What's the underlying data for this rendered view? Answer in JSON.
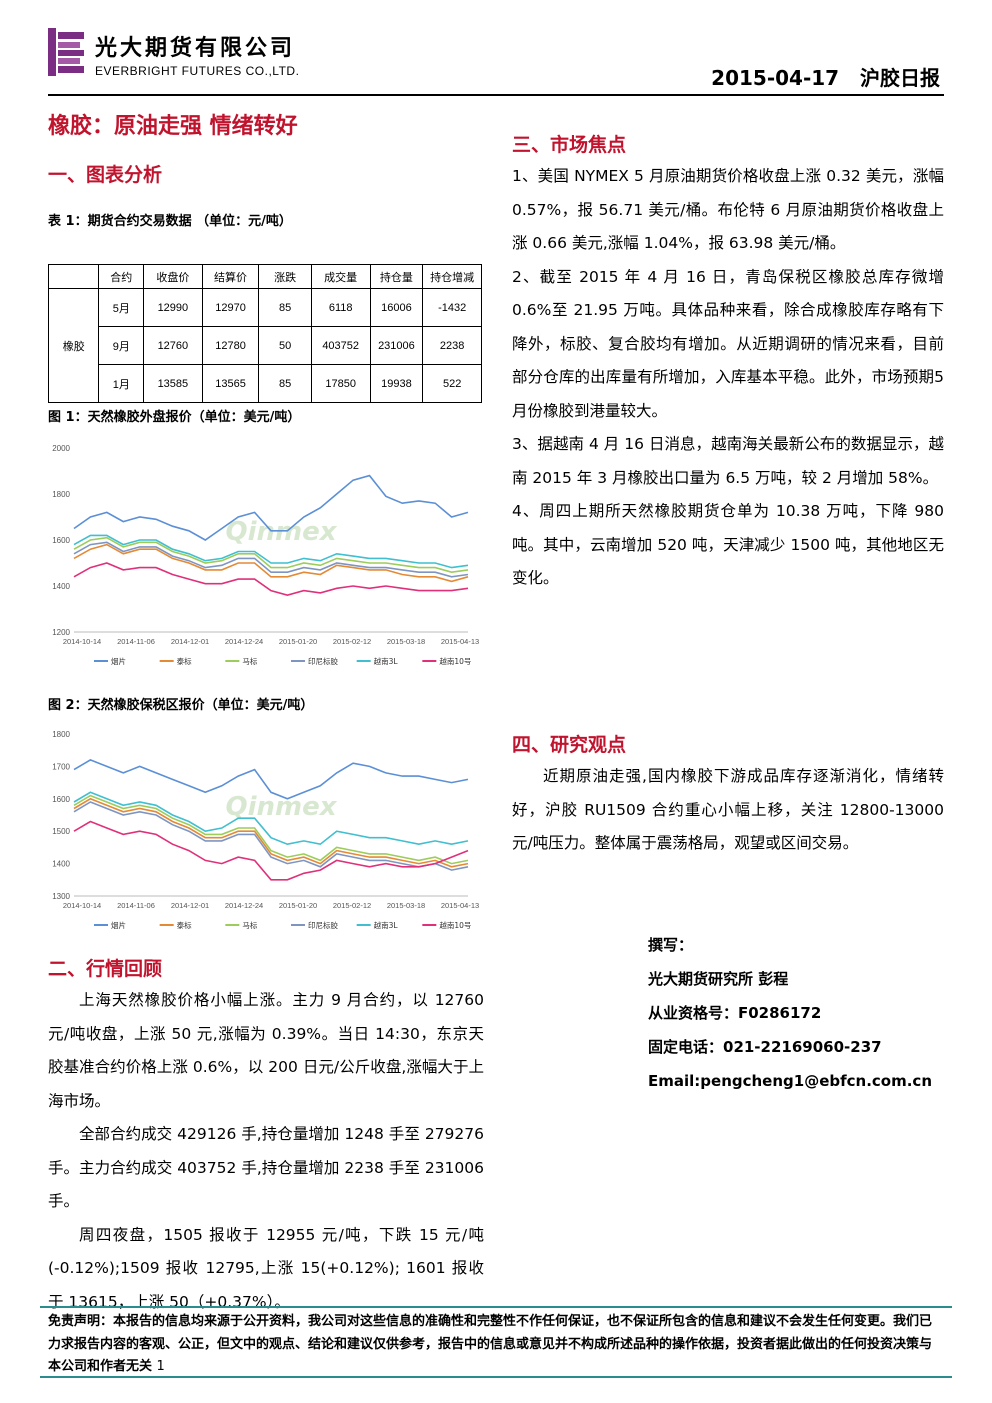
{
  "header": {
    "company_cn": "光大期货有限公司",
    "company_en": "EVERBRIGHT FUTURES CO.,LTD.",
    "date": "2015-04-17",
    "report_name": "沪胶日报"
  },
  "title": "橡胶：原油走强 情绪转好",
  "section1": {
    "heading": "一、图表分析",
    "table_caption": "表 1：期货合约交易数据 （单位：元/吨）",
    "table": {
      "headers": [
        "合约",
        "收盘价",
        "结算价",
        "涨跌",
        "成交量",
        "持仓量",
        "持仓增减"
      ],
      "row_label": "橡胶",
      "rows": [
        [
          "5月",
          "12990",
          "12970",
          "85",
          "6118",
          "16006",
          "-1432"
        ],
        [
          "9月",
          "12760",
          "12780",
          "50",
          "403752",
          "231006",
          "2238"
        ],
        [
          "1月",
          "13585",
          "13565",
          "85",
          "17850",
          "19938",
          "522"
        ]
      ]
    },
    "fig1_caption": "图 1：天然橡胶外盘报价（单位：美元/吨）",
    "fig2_caption": "图 2：天然橡胶保税区报价（单位：美元/吨）"
  },
  "chart_data": [
    {
      "type": "line",
      "title": "",
      "ylim": [
        1200,
        2000
      ],
      "yticks": [
        "2000",
        "1800",
        "1600",
        "1400",
        "1200"
      ],
      "xticks": [
        "2014-10-14",
        "2014-11-06",
        "2014-12-01",
        "2014-12-24",
        "2015-01-20",
        "2015-02-12",
        "2015-03-18",
        "2015-04-13"
      ],
      "watermark": "Qinmex",
      "series": [
        {
          "name": "烟片",
          "color": "#5b8fd6",
          "values": [
            1650,
            1700,
            1720,
            1680,
            1700,
            1690,
            1660,
            1640,
            1600,
            1650,
            1700,
            1720,
            1640,
            1640,
            1700,
            1740,
            1800,
            1860,
            1880,
            1790,
            1760,
            1770,
            1760,
            1700,
            1720
          ]
        },
        {
          "name": "泰标",
          "color": "#e48a35",
          "values": [
            1520,
            1560,
            1580,
            1540,
            1560,
            1560,
            1520,
            1500,
            1470,
            1470,
            1500,
            1500,
            1440,
            1440,
            1460,
            1450,
            1490,
            1480,
            1470,
            1470,
            1450,
            1440,
            1440,
            1420,
            1440
          ]
        },
        {
          "name": "马标",
          "color": "#9ccc5a",
          "values": [
            1560,
            1600,
            1610,
            1570,
            1590,
            1590,
            1550,
            1530,
            1500,
            1510,
            1540,
            1540,
            1480,
            1480,
            1500,
            1490,
            1520,
            1510,
            1500,
            1500,
            1490,
            1480,
            1480,
            1460,
            1470
          ]
        },
        {
          "name": "印尼标胶",
          "color": "#7e95c2",
          "values": [
            1540,
            1580,
            1590,
            1550,
            1570,
            1570,
            1530,
            1510,
            1480,
            1490,
            1520,
            1520,
            1460,
            1460,
            1480,
            1470,
            1500,
            1490,
            1480,
            1480,
            1470,
            1460,
            1460,
            1440,
            1450
          ]
        },
        {
          "name": "越南3L",
          "color": "#3fbfcf",
          "values": [
            1580,
            1620,
            1620,
            1580,
            1600,
            1600,
            1560,
            1540,
            1510,
            1520,
            1550,
            1550,
            1500,
            1500,
            1520,
            1510,
            1540,
            1530,
            1520,
            1520,
            1510,
            1500,
            1500,
            1480,
            1490
          ]
        },
        {
          "name": "越南10号",
          "color": "#e0307a",
          "values": [
            1440,
            1480,
            1500,
            1470,
            1480,
            1480,
            1450,
            1430,
            1410,
            1410,
            1430,
            1430,
            1380,
            1360,
            1380,
            1370,
            1390,
            1400,
            1390,
            1400,
            1390,
            1380,
            1380,
            1380,
            1390
          ]
        }
      ]
    },
    {
      "type": "line",
      "title": "",
      "ylim": [
        1300,
        1800
      ],
      "yticks": [
        "1800",
        "1700",
        "1600",
        "1500",
        "1400",
        "1300"
      ],
      "xticks": [
        "2014-10-14",
        "2014-11-06",
        "2014-12-01",
        "2014-12-24",
        "2015-01-20",
        "2015-02-12",
        "2015-03-18",
        "2015-04-13"
      ],
      "watermark": "Qinmex",
      "series": [
        {
          "name": "烟片",
          "color": "#5b8fd6",
          "values": [
            1690,
            1720,
            1700,
            1680,
            1700,
            1680,
            1660,
            1640,
            1620,
            1640,
            1670,
            1690,
            1620,
            1600,
            1620,
            1640,
            1680,
            1710,
            1700,
            1680,
            1670,
            1670,
            1660,
            1650,
            1660
          ]
        },
        {
          "name": "泰标",
          "color": "#e48a35",
          "values": [
            1570,
            1600,
            1580,
            1560,
            1570,
            1560,
            1530,
            1510,
            1480,
            1480,
            1500,
            1500,
            1430,
            1410,
            1420,
            1400,
            1440,
            1430,
            1420,
            1420,
            1410,
            1400,
            1410,
            1390,
            1400
          ]
        },
        {
          "name": "马标",
          "color": "#9ccc5a",
          "values": [
            1580,
            1610,
            1590,
            1570,
            1580,
            1570,
            1540,
            1520,
            1490,
            1490,
            1510,
            1510,
            1440,
            1420,
            1430,
            1410,
            1450,
            1440,
            1430,
            1430,
            1420,
            1410,
            1420,
            1400,
            1410
          ]
        },
        {
          "name": "印尼标胶",
          "color": "#7e95c2",
          "values": [
            1560,
            1590,
            1570,
            1550,
            1560,
            1550,
            1520,
            1500,
            1470,
            1470,
            1490,
            1490,
            1420,
            1400,
            1410,
            1390,
            1430,
            1420,
            1410,
            1410,
            1400,
            1390,
            1400,
            1380,
            1390
          ]
        },
        {
          "name": "越南3L",
          "color": "#3fbfcf",
          "values": [
            1590,
            1620,
            1600,
            1580,
            1590,
            1580,
            1550,
            1530,
            1500,
            1510,
            1540,
            1540,
            1480,
            1460,
            1470,
            1460,
            1500,
            1490,
            1480,
            1480,
            1470,
            1460,
            1470,
            1460,
            1470
          ]
        },
        {
          "name": "越南10号",
          "color": "#e0307a",
          "values": [
            1500,
            1530,
            1510,
            1490,
            1500,
            1490,
            1460,
            1440,
            1410,
            1400,
            1420,
            1410,
            1350,
            1350,
            1370,
            1380,
            1410,
            1400,
            1390,
            1400,
            1390,
            1390,
            1400,
            1420,
            1440
          ]
        }
      ]
    }
  ],
  "section2": {
    "heading": "二、行情回顾",
    "paragraphs": [
      "上海天然橡胶价格小幅上涨。主力 9 月合约，以 12760 元/吨收盘，上涨 50 元,涨幅为 0.39%。当日 14:30，东京天胶基准合约价格上涨 0.6%，以 200 日元/公斤收盘,涨幅大于上海市场。",
      "全部合约成交 429126 手,持仓量增加 1248 手至 279276 手。主力合约成交 403752 手,持仓量增加 2238 手至 231006 手。",
      "周四夜盘，1505 报收于 12955 元/吨，下跌 15 元/吨(-0.12%);1509 报收 12795,上涨 15(+0.12%); 1601 报收于 13615，上涨 50（+0.37%）。"
    ]
  },
  "section3": {
    "heading": "三、市场焦点",
    "paragraphs": [
      "1、美国 NYMEX 5 月原油期货价格收盘上涨 0.32 美元，涨幅 0.57%，报 56.71 美元/桶。布伦特 6 月原油期货价格收盘上涨 0.66 美元,涨幅 1.04%，报 63.98 美元/桶。",
      "2、截至 2015 年 4 月 16 日，青岛保税区橡胶总库存微增 0.6%至 21.95 万吨。具体品种来看，除合成橡胶库存略有下降外，标胶、复合胶均有增加。从近期调研的情况来看，目前部分仓库的出库量有所增加，入库基本平稳。此外，市场预期5月份橡胶到港量较大。",
      "3、据越南 4 月 16 日消息，越南海关最新公布的数据显示，越南 2015 年 3 月橡胶出口量为 6.5 万吨，较 2 月增加 58%。",
      "4、周四上期所天然橡胶期货仓单为 10.38 万吨，下降 980 吨。其中，云南增加 520 吨，天津减少 1500 吨，其他地区无变化。"
    ]
  },
  "section4": {
    "heading": "四、研究观点",
    "paragraph": "近期原油走强,国内橡胶下游成品库存逐渐消化，情绪转好，沪胶 RU1509 合约重心小幅上移，关注 12800-13000 元/吨压力。整体属于震荡格局，观望或区间交易。"
  },
  "author": {
    "label": "撰写：",
    "org_name": "光大期货研究所 彭程",
    "license": "从业资格号：F0286172",
    "phone": "固定电话：021-22169060-237",
    "email": "Email:pengcheng1@ebfcn.com.cn"
  },
  "disclaimer": "免责声明：本报告的信息均来源于公开资料，我公司对这些信息的准确性和完整性不作任何保证，也不保证所包含的信息和建议不会发生任何变更。我们已力求报告内容的客观、公正，但文中的观点、结论和建议仅供参考，报告中的信息或意见并不构成所述品种的操作依据，投资者据此做出的任何投资决策与本公司和作者无关",
  "page_number": "1",
  "colors": {
    "accent_red": "#c0142e",
    "brand_purple": "#7b2d83",
    "rule_teal": "#2a8c8c"
  }
}
